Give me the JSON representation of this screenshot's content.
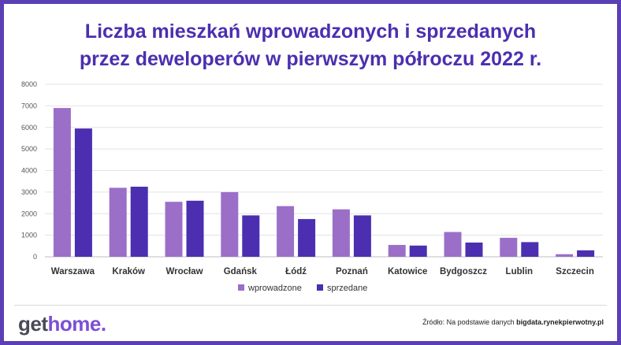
{
  "chart_data": {
    "type": "bar",
    "title_line1": "Liczba mieszkań wprowadzonych i sprzedanych",
    "title_line2": "przez deweloperów w pierwszym półroczu 2022 r.",
    "categories": [
      "Warszawa",
      "Kraków",
      "Wrocław",
      "Gdańsk",
      "Łódź",
      "Poznań",
      "Katowice",
      "Bydgoszcz",
      "Lublin",
      "Szczecin"
    ],
    "series": [
      {
        "name": "wprowadzone",
        "color": "#9b6fc8",
        "values": [
          6900,
          3200,
          2550,
          3000,
          2350,
          2200,
          550,
          1150,
          880,
          120
        ]
      },
      {
        "name": "sprzedane",
        "color": "#4b2fb0",
        "values": [
          5950,
          3250,
          2600,
          1920,
          1750,
          1920,
          520,
          660,
          680,
          300
        ]
      }
    ],
    "ylim": [
      0,
      8000
    ],
    "yticks": [
      "0",
      "1000",
      "2000",
      "3000",
      "4000",
      "5000",
      "6000",
      "7000",
      "8000"
    ],
    "grid": true,
    "legend_position": "bottom"
  },
  "footer": {
    "logo_part1": "get",
    "logo_part2": "home.",
    "source_prefix": "Źródło: Na podstawie danych ",
    "source_bold": "bigdata.rynekpierwotny.pl"
  }
}
